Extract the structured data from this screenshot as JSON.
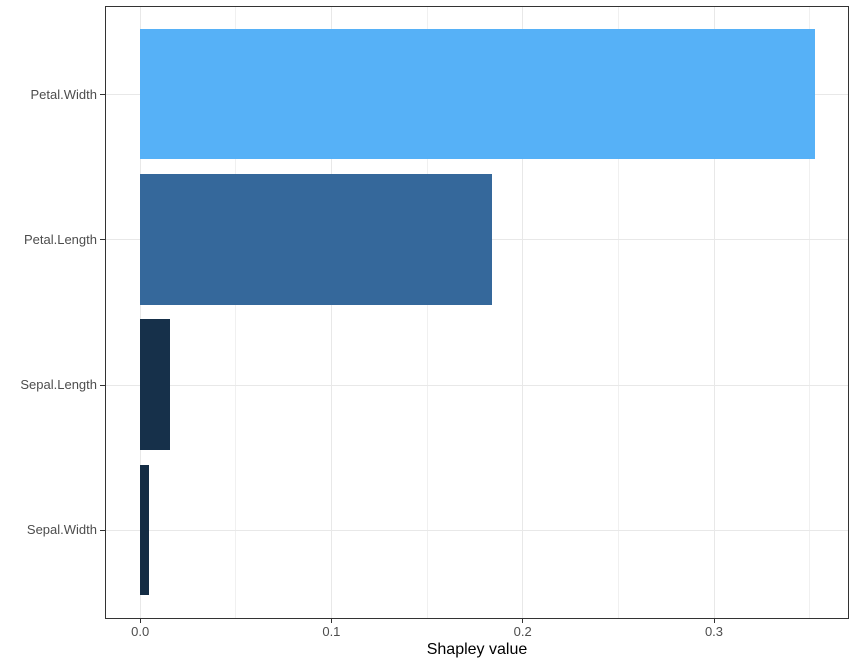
{
  "chart_data": {
    "type": "bar",
    "orientation": "horizontal",
    "title": "",
    "xlabel": "Shapley value",
    "ylabel": "",
    "categories": [
      "Petal.Width",
      "Petal.Length",
      "Sepal.Length",
      "Sepal.Width"
    ],
    "values": [
      0.353,
      0.184,
      0.016,
      0.005
    ],
    "bar_colors": [
      "#56B1F7",
      "#35689B",
      "#16304A",
      "#142C44"
    ],
    "xlim": [
      -0.0176,
      0.3698
    ],
    "x_ticks": [
      0.0,
      0.1,
      0.2,
      0.3
    ],
    "x_tick_labels": [
      "0.0",
      "0.1",
      "0.2",
      "0.3"
    ],
    "x_minor_ticks": [
      0.05,
      0.15,
      0.25,
      0.35
    ],
    "grid": true,
    "legend": false
  },
  "style": {
    "panel_border_color": "#333333",
    "grid_major_color": "#e8e8e8",
    "grid_minor_color": "#f0f0f0",
    "tick_color": "#333333",
    "tick_label_color": "#4d4d4d",
    "axis_title_color": "#000000",
    "background": "#ffffff"
  }
}
